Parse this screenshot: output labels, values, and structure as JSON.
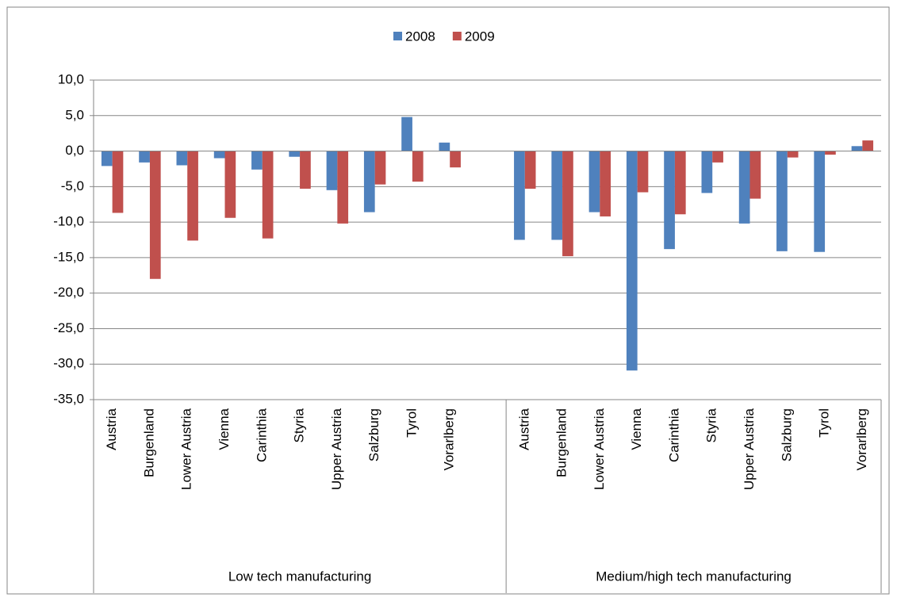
{
  "chart_data": {
    "type": "bar",
    "groups": [
      {
        "label": "Low tech manufacturing",
        "categories": [
          "Austria",
          "Burgenland",
          "Lower Austria",
          "Vienna",
          "Carinthia",
          "Styria",
          "Upper Austria",
          "Salzburg",
          "Tyrol",
          "Vorarlberg",
          null
        ]
      },
      {
        "label": "Medium/high tech manufacturing",
        "categories": [
          "Austria",
          "Burgenland",
          "Lower Austria",
          "Vienna",
          "Carinthia",
          "Styria",
          "Upper Austria",
          "Salzburg",
          "Tyrol",
          "Vorarlberg"
        ]
      }
    ],
    "series": [
      {
        "name": "2008",
        "color": "#4f81bd",
        "values": [
          -2.1,
          -1.6,
          -2.0,
          -1.0,
          -2.6,
          -0.8,
          -5.5,
          -8.6,
          4.8,
          1.2,
          null,
          -12.5,
          -12.5,
          -8.6,
          -30.9,
          -13.8,
          -5.9,
          -10.2,
          -14.1,
          -14.2,
          0.7
        ]
      },
      {
        "name": "2009",
        "color": "#c0504d",
        "values": [
          -8.7,
          -18.0,
          -12.6,
          -9.4,
          -12.3,
          -5.3,
          -10.2,
          -4.7,
          -4.3,
          -2.3,
          null,
          -5.3,
          -14.8,
          -9.2,
          -5.8,
          -8.9,
          -1.6,
          -6.7,
          -0.9,
          -0.5,
          1.5
        ]
      }
    ],
    "ylim": [
      -35,
      10
    ],
    "yticks": [
      {
        "value": 10,
        "label": "10,0"
      },
      {
        "value": 5,
        "label": "5,0"
      },
      {
        "value": 0,
        "label": "0,0"
      },
      {
        "value": -5,
        "label": "-5,0"
      },
      {
        "value": -10,
        "label": "-10,0"
      },
      {
        "value": -15,
        "label": "-15,0"
      },
      {
        "value": -20,
        "label": "-20,0"
      },
      {
        "value": -25,
        "label": "-25,0"
      },
      {
        "value": -30,
        "label": "-30,0"
      },
      {
        "value": -35,
        "label": "-35,0"
      }
    ],
    "grid": true,
    "legend": "top"
  }
}
